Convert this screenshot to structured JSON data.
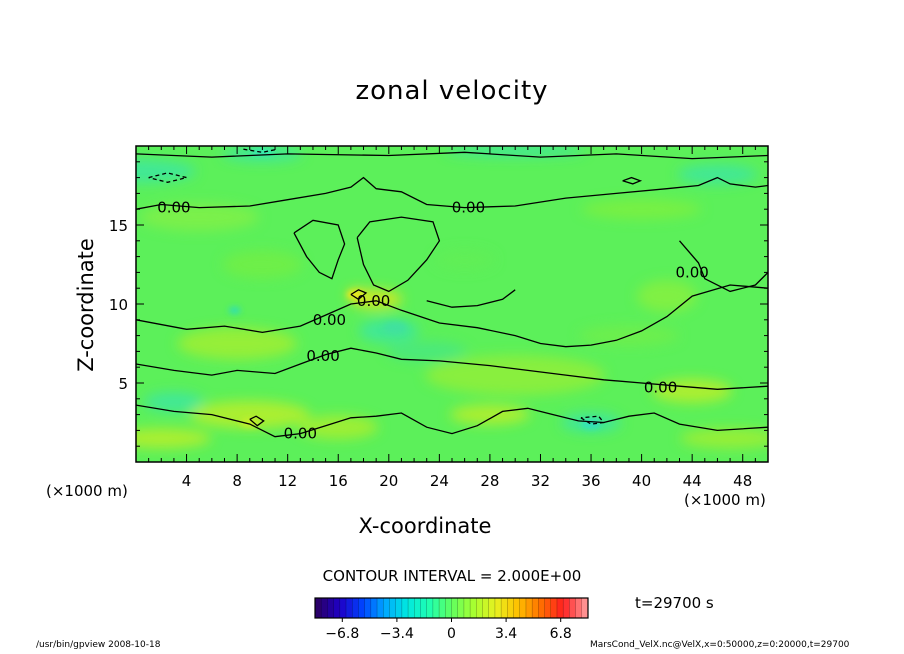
{
  "chart_data": {
    "type": "heatmap",
    "title": "zonal velocity",
    "xlabel": "X-coordinate",
    "ylabel": "Z-coordinate",
    "x_unit": "(×1000 m)",
    "y_unit": "(×1000 m)",
    "xlim": [
      0,
      50
    ],
    "ylim": [
      0,
      20
    ],
    "x_ticks": [
      4,
      8,
      12,
      16,
      20,
      24,
      28,
      32,
      36,
      40,
      44,
      48
    ],
    "y_ticks": [
      5,
      10,
      15
    ],
    "contour_interval_text": "CONTOUR INTERVAL = 2.000E+00",
    "contour_labels": [
      {
        "text": "0.00",
        "x": 3.0,
        "z": 16.1
      },
      {
        "text": "0.00",
        "x": 26.3,
        "z": 16.1
      },
      {
        "text": "0.00",
        "x": 18.8,
        "z": 10.2
      },
      {
        "text": "0.00",
        "x": 15.3,
        "z": 9.0
      },
      {
        "text": "0.00",
        "x": 14.8,
        "z": 6.7
      },
      {
        "text": "0.00",
        "x": 13.0,
        "z": 1.8
      },
      {
        "text": "0.00",
        "x": 41.5,
        "z": 4.7
      },
      {
        "text": "0.00",
        "x": 44.0,
        "z": 12.0
      }
    ],
    "colorbar": {
      "range": [
        -8.5,
        8.5
      ],
      "tick_values": [
        -6.8,
        -3.4,
        0,
        3.4,
        6.8
      ],
      "tick_labels": [
        "−6.8",
        "−3.4",
        "0",
        "3.4",
        "6.8"
      ],
      "colors": [
        "#2a006a",
        "#1e00c8",
        "#0044ff",
        "#00a8ff",
        "#00e8e0",
        "#20ffb0",
        "#60ff60",
        "#a8ff30",
        "#e8f020",
        "#ffc000",
        "#ff7000",
        "#ff2020",
        "#ff9090"
      ]
    },
    "field_colors": {
      "background": "#5cf05a",
      "positive": "#b8ee2a",
      "negative": "#3ce6a0"
    }
  },
  "time_label": "t=29700 s",
  "footer": {
    "left": "/usr/bin/gpview   2008-10-18",
    "right": "MarsCond_VelX.nc@VelX,x=0:50000,z=0:20000,t=29700"
  }
}
